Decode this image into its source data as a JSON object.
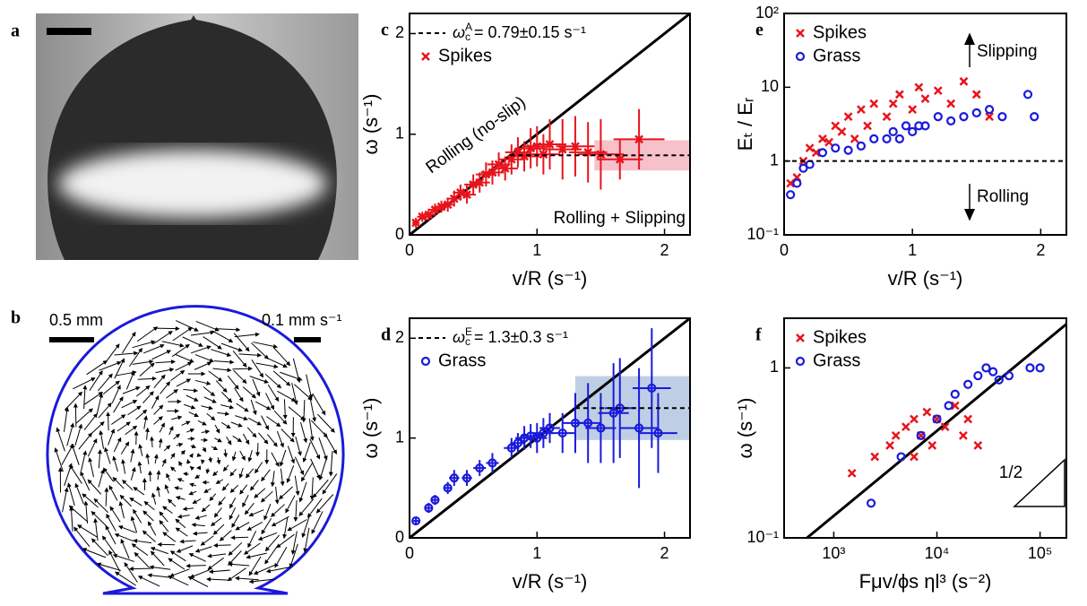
{
  "panels": {
    "a": {
      "label": "a"
    },
    "b": {
      "label": "b",
      "scale_length": "0.5 mm",
      "scale_velocity": "0.1 mm s⁻¹"
    }
  },
  "chart_data": [
    {
      "type": "scatter",
      "label": "c",
      "xlabel": "v/R (s⁻¹)",
      "ylabel": "ω (s⁻¹)",
      "xlim": [
        0,
        2.2
      ],
      "ylim": [
        0,
        2.2
      ],
      "xticks": [
        0,
        1,
        2
      ],
      "yticks": [
        0,
        1,
        2
      ],
      "identity_line": true,
      "ref_line": {
        "y": 0.79,
        "x_start": 0.79,
        "label": {
          "symbol": "ω",
          "sub": "c",
          "sup": "A",
          "text": "= 0.79±0.15 s⁻¹"
        }
      },
      "band": {
        "x_start": 1.45,
        "y": [
          0.64,
          0.94
        ],
        "color": "#f4b6c2"
      },
      "annotations": [
        "Rolling (no-slip)",
        "Rolling + Slipping"
      ],
      "series": [
        {
          "name": "Spikes",
          "color": "#e8141c",
          "marker": "x",
          "x": [
            0.05,
            0.1,
            0.15,
            0.2,
            0.25,
            0.3,
            0.35,
            0.4,
            0.45,
            0.5,
            0.55,
            0.6,
            0.65,
            0.7,
            0.75,
            0.8,
            0.85,
            0.9,
            0.95,
            1.0,
            1.05,
            1.1,
            1.2,
            1.3,
            1.4,
            1.5,
            1.65,
            1.8
          ],
          "y": [
            0.12,
            0.18,
            0.2,
            0.25,
            0.28,
            0.3,
            0.36,
            0.42,
            0.4,
            0.5,
            0.52,
            0.6,
            0.62,
            0.7,
            0.66,
            0.75,
            0.82,
            0.78,
            0.86,
            0.88,
            0.8,
            0.9,
            0.85,
            0.88,
            0.82,
            0.8,
            0.75,
            0.95
          ],
          "xerr": [
            0.03,
            0.04,
            0.04,
            0.05,
            0.05,
            0.05,
            0.06,
            0.06,
            0.07,
            0.07,
            0.08,
            0.08,
            0.09,
            0.09,
            0.1,
            0.1,
            0.1,
            0.12,
            0.12,
            0.12,
            0.13,
            0.13,
            0.15,
            0.15,
            0.15,
            0.18,
            0.18,
            0.2
          ],
          "yerr": [
            0.05,
            0.05,
            0.06,
            0.06,
            0.06,
            0.07,
            0.08,
            0.08,
            0.09,
            0.1,
            0.1,
            0.12,
            0.12,
            0.12,
            0.12,
            0.15,
            0.15,
            0.15,
            0.2,
            0.2,
            0.2,
            0.25,
            0.3,
            0.3,
            0.3,
            0.35,
            0.2,
            0.3
          ]
        }
      ]
    },
    {
      "type": "scatter",
      "label": "d",
      "xlabel": "v/R (s⁻¹)",
      "ylabel": "ω (s⁻¹)",
      "xlim": [
        0,
        2.2
      ],
      "ylim": [
        0,
        2.2
      ],
      "xticks": [
        0,
        1,
        2
      ],
      "yticks": [
        0,
        1,
        2
      ],
      "identity_line": true,
      "ref_line": {
        "y": 1.3,
        "x_start": 1.3,
        "label": {
          "symbol": "ω",
          "sub": "c",
          "sup": "E",
          "text": "= 1.3±0.3 s⁻¹"
        }
      },
      "band": {
        "x_start": 1.3,
        "y": [
          0.98,
          1.62
        ],
        "color": "#b3c7e0"
      },
      "annotations": [],
      "series": [
        {
          "name": "Grass",
          "color": "#1a1adb",
          "marker": "o",
          "x": [
            0.05,
            0.15,
            0.2,
            0.3,
            0.35,
            0.45,
            0.55,
            0.65,
            0.8,
            0.85,
            0.9,
            0.95,
            1.0,
            1.05,
            1.1,
            1.2,
            1.3,
            1.4,
            1.5,
            1.6,
            1.65,
            1.8,
            1.9,
            1.95
          ],
          "y": [
            0.17,
            0.3,
            0.38,
            0.5,
            0.6,
            0.6,
            0.7,
            0.75,
            0.9,
            0.95,
            1.0,
            1.02,
            1.0,
            1.05,
            1.1,
            1.05,
            1.15,
            1.15,
            1.1,
            1.25,
            1.3,
            1.1,
            1.5,
            1.05
          ],
          "xerr": [
            0.02,
            0.03,
            0.03,
            0.03,
            0.04,
            0.04,
            0.05,
            0.05,
            0.06,
            0.06,
            0.07,
            0.07,
            0.08,
            0.08,
            0.08,
            0.1,
            0.1,
            0.1,
            0.12,
            0.12,
            0.12,
            0.15,
            0.15,
            0.15
          ],
          "yerr": [
            0.03,
            0.05,
            0.05,
            0.06,
            0.08,
            0.08,
            0.08,
            0.1,
            0.1,
            0.1,
            0.12,
            0.12,
            0.15,
            0.15,
            0.15,
            0.2,
            0.3,
            0.4,
            0.35,
            0.5,
            0.5,
            0.6,
            0.6,
            0.4
          ]
        }
      ]
    },
    {
      "type": "scatter",
      "label": "e",
      "xlabel": "v/R (s⁻¹)",
      "ylabel": "Eₜ / Eᵣ",
      "xlim": [
        0,
        2.2
      ],
      "ylim": [
        0.1,
        100
      ],
      "yscale": "log",
      "xticks": [
        0,
        1,
        2
      ],
      "yticks": [
        {
          "value": 0.1,
          "label": "10⁻¹"
        },
        1,
        10,
        {
          "value": 100,
          "label": "10²"
        }
      ],
      "ref_line": {
        "y": 1,
        "x_start": 0
      },
      "annotations": [
        "Slipping",
        "Rolling"
      ],
      "series": [
        {
          "name": "Spikes",
          "color": "#e8141c",
          "marker": "x",
          "x": [
            0.05,
            0.1,
            0.15,
            0.2,
            0.25,
            0.3,
            0.35,
            0.4,
            0.45,
            0.5,
            0.55,
            0.6,
            0.65,
            0.7,
            0.8,
            0.85,
            0.9,
            1.0,
            1.05,
            1.1,
            1.2,
            1.3,
            1.4,
            1.5,
            1.6
          ],
          "y": [
            0.5,
            0.6,
            1,
            1.5,
            1.3,
            2,
            1.8,
            3,
            2.5,
            4,
            2,
            5,
            3,
            6,
            4,
            6,
            8,
            5,
            10,
            7,
            9,
            6,
            12,
            8,
            4
          ]
        },
        {
          "name": "Grass",
          "color": "#1a1adb",
          "marker": "o",
          "x": [
            0.05,
            0.1,
            0.15,
            0.2,
            0.3,
            0.4,
            0.5,
            0.6,
            0.7,
            0.8,
            0.85,
            0.9,
            0.95,
            1.0,
            1.05,
            1.1,
            1.2,
            1.3,
            1.4,
            1.5,
            1.6,
            1.7,
            1.9,
            1.95
          ],
          "y": [
            0.35,
            0.5,
            0.8,
            0.9,
            1.3,
            1.5,
            1.4,
            1.6,
            2,
            2,
            2.5,
            2,
            3,
            2.5,
            3,
            3,
            4,
            3.5,
            4,
            4.5,
            5,
            4,
            8,
            4
          ]
        }
      ]
    },
    {
      "type": "scatter",
      "label": "f",
      "xlabel": "Fμv/ϕs ηl³ (s⁻²)",
      "ylabel": "ω (s⁻¹)",
      "xlim": [
        330,
        180000
      ],
      "ylim": [
        0.1,
        1.96
      ],
      "xscale": "log",
      "yscale": "log",
      "xticks": [
        {
          "value": 1000,
          "label": "10³"
        },
        {
          "value": 10000,
          "label": "10⁴"
        },
        {
          "value": 100000,
          "label": "10⁵"
        }
      ],
      "yticks": [
        {
          "value": 0.1,
          "label": "10⁻¹"
        },
        1
      ],
      "fit_line": {
        "x": [
          550,
          180000
        ],
        "y": [
          0.1,
          1.81
        ]
      },
      "annotations": [
        "1/2"
      ],
      "series": [
        {
          "name": "Spikes",
          "color": "#e8141c",
          "marker": "x",
          "x": [
            1500,
            2500,
            3500,
            4000,
            5000,
            6000,
            7000,
            8000,
            10000,
            12000,
            15000,
            20000,
            6000,
            9000,
            18000,
            25000
          ],
          "y": [
            0.24,
            0.3,
            0.35,
            0.4,
            0.45,
            0.5,
            0.4,
            0.55,
            0.5,
            0.45,
            0.6,
            0.5,
            0.3,
            0.35,
            0.4,
            0.35
          ]
        },
        {
          "name": "Grass",
          "color": "#1a1adb",
          "marker": "o",
          "x": [
            2300,
            4500,
            7000,
            10000,
            13000,
            15000,
            20000,
            25000,
            30000,
            35000,
            40000,
            50000,
            80000,
            100000
          ],
          "y": [
            0.16,
            0.3,
            0.4,
            0.5,
            0.6,
            0.7,
            0.8,
            0.9,
            1.0,
            0.95,
            0.85,
            0.9,
            1.0,
            1.0
          ]
        }
      ]
    }
  ]
}
